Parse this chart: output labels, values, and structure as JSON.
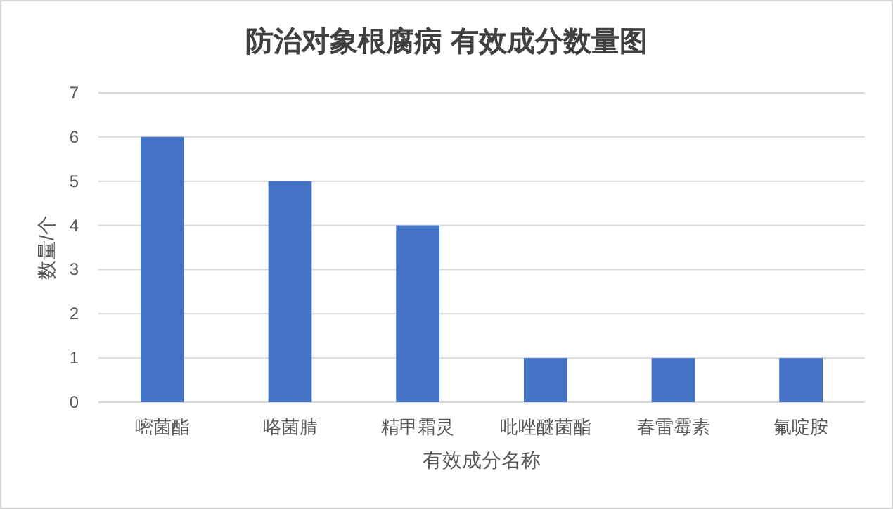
{
  "chart_data": {
    "type": "bar",
    "title": "防治对象根腐病 有效成分数量图",
    "xlabel": "有效成分名称",
    "ylabel": "数量/个",
    "categories": [
      "嘧菌酯",
      "咯菌腈",
      "精甲霜灵",
      "吡唑醚菌酯",
      "春雷霉素",
      "氟啶胺"
    ],
    "values": [
      6,
      5,
      4,
      1,
      1,
      1
    ],
    "color": "#4472c4",
    "ylim": [
      0,
      7
    ],
    "yticks": [
      0,
      1,
      2,
      3,
      4,
      5,
      6,
      7
    ],
    "grid": "y"
  }
}
